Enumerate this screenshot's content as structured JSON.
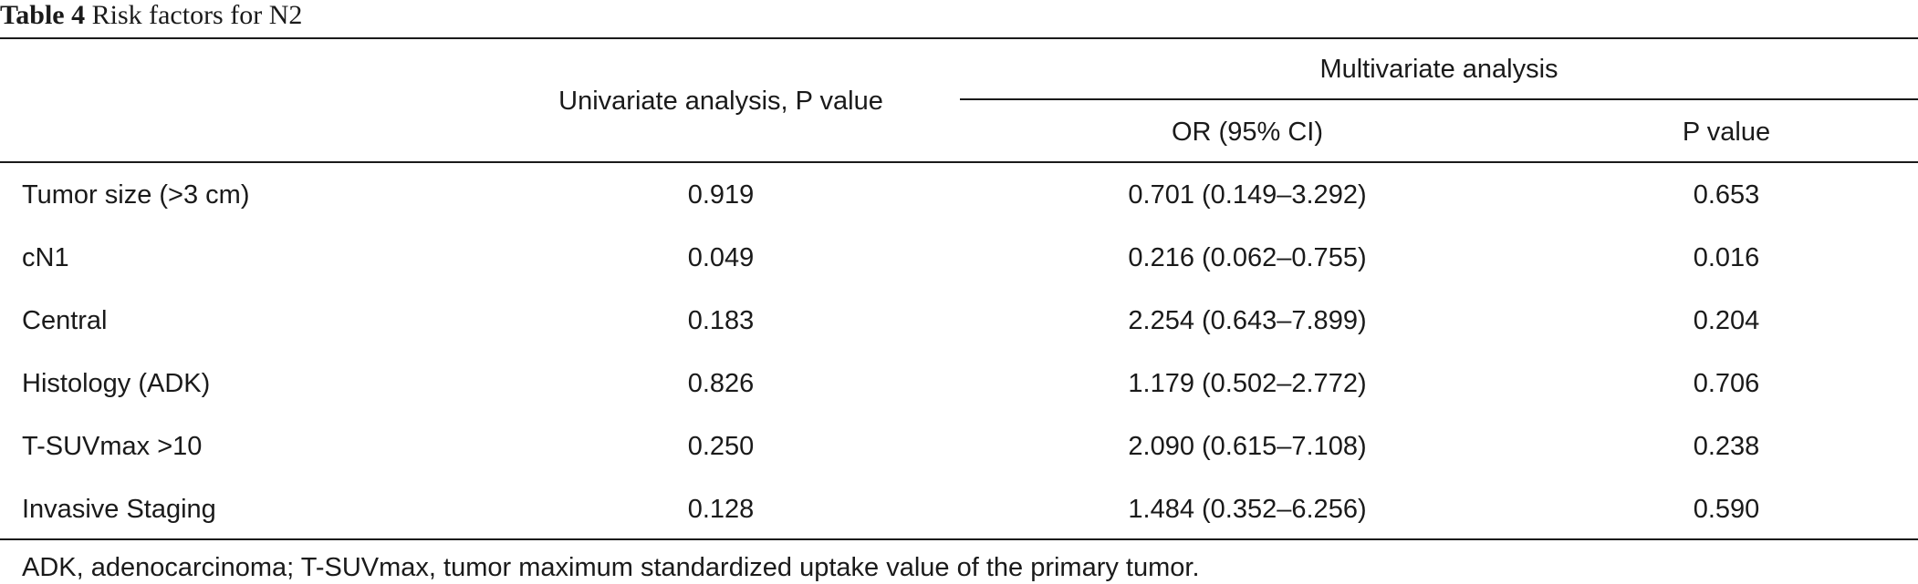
{
  "caption": {
    "label": "Table 4",
    "title": "Risk factors for N2"
  },
  "header": {
    "univariate": "Univariate analysis, P value",
    "multivariate": "Multivariate analysis",
    "or_ci": "OR (95% CI)",
    "p_value": "P value"
  },
  "rows": [
    {
      "factor": "Tumor size (>3 cm)",
      "univariate_p": "0.919",
      "or_ci": "0.701 (0.149–3.292)",
      "p": "0.653"
    },
    {
      "factor": "cN1",
      "univariate_p": "0.049",
      "or_ci": "0.216 (0.062–0.755)",
      "p": "0.016"
    },
    {
      "factor": "Central",
      "univariate_p": "0.183",
      "or_ci": "2.254 (0.643–7.899)",
      "p": "0.204"
    },
    {
      "factor": "Histology (ADK)",
      "univariate_p": "0.826",
      "or_ci": "1.179 (0.502–2.772)",
      "p": "0.706"
    },
    {
      "factor": "T-SUVmax >10",
      "univariate_p": "0.250",
      "or_ci": "2.090 (0.615–7.108)",
      "p": "0.238"
    },
    {
      "factor": "Invasive Staging",
      "univariate_p": "0.128",
      "or_ci": "1.484 (0.352–6.256)",
      "p": "0.590"
    }
  ],
  "footnote": "ADK, adenocarcinoma; T-SUVmax, tumor maximum standardized uptake value of the primary tumor."
}
